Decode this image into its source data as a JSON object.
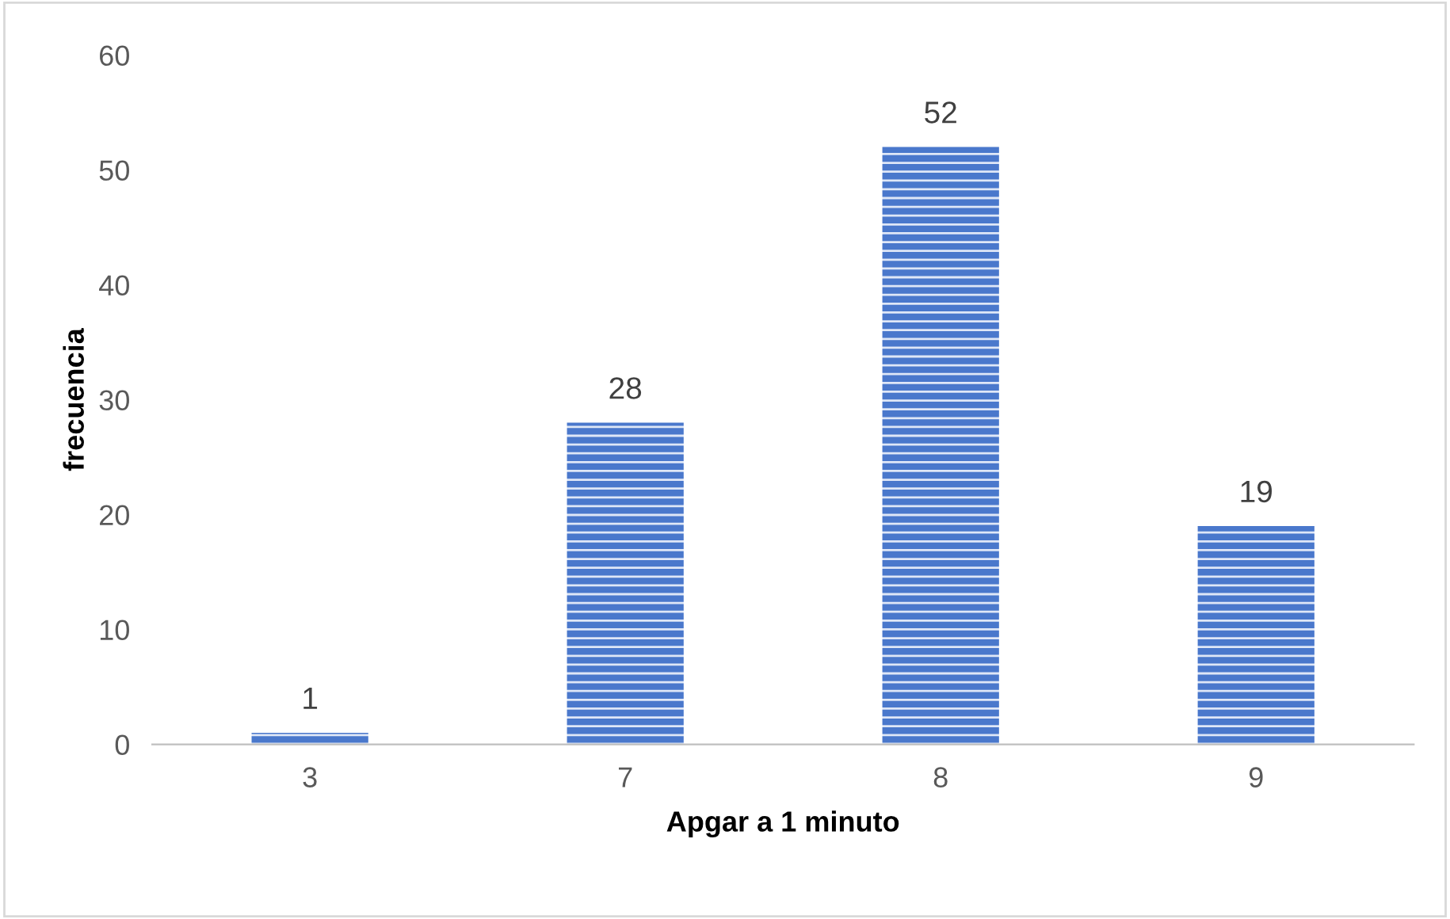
{
  "chart_data": {
    "type": "bar",
    "xlabel": "Apgar a 1 minuto",
    "ylabel": "frecuencia",
    "categories": [
      "3",
      "7",
      "8",
      "9"
    ],
    "values": [
      1,
      28,
      52,
      19
    ],
    "color": "#4a78cc",
    "ylim": [
      0,
      60
    ],
    "yticks": [
      0,
      10,
      20,
      30,
      40,
      50,
      60
    ],
    "grid": false,
    "data_labels": true
  }
}
